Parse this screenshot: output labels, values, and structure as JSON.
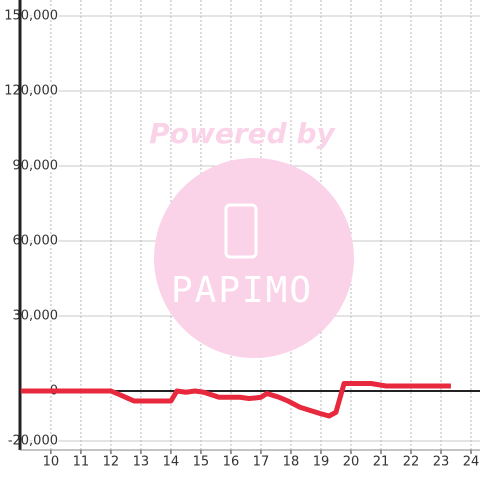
{
  "chart_data": {
    "type": "line",
    "annotations": [
      "Powered by",
      "PAPIMO"
    ],
    "x": [
      9.0,
      12.0,
      12.3,
      12.77,
      14.0,
      14.2,
      14.5,
      14.8,
      15.1,
      15.6,
      16.3,
      16.6,
      16.8,
      17.0,
      17.2,
      17.6,
      17.9,
      18.3,
      18.7,
      18.97,
      19.27,
      19.5,
      19.77,
      20.67,
      21.17,
      23.33
    ],
    "series": [
      {
        "color": "#e8283c",
        "values": [
          0,
          0,
          -1500,
          -4000,
          -4000,
          0,
          -500,
          0,
          -500,
          -2500,
          -2500,
          -3000,
          -2800,
          -2500,
          -1000,
          -2500,
          -4000,
          -6500,
          -8000,
          -9000,
          -10000,
          -8500,
          3000,
          3000,
          2000,
          2000
        ]
      }
    ],
    "xlim": [
      8.97,
      24.3
    ],
    "xticks": [
      10,
      11,
      12,
      13,
      14,
      15,
      16,
      17,
      18,
      19,
      20,
      21,
      22,
      23,
      24
    ],
    "ylim": [
      -20000,
      150000
    ],
    "yticks": [
      {
        "value": -20000,
        "label": "-20,000"
      },
      0,
      {
        "value": 30000,
        "label": "30,000"
      },
      {
        "value": 60000,
        "label": "60,000"
      },
      {
        "value": 90000,
        "label": "90,000"
      },
      {
        "value": 120000,
        "label": "120,000"
      },
      {
        "value": 150000,
        "label": "150,000"
      }
    ],
    "grid": true
  }
}
